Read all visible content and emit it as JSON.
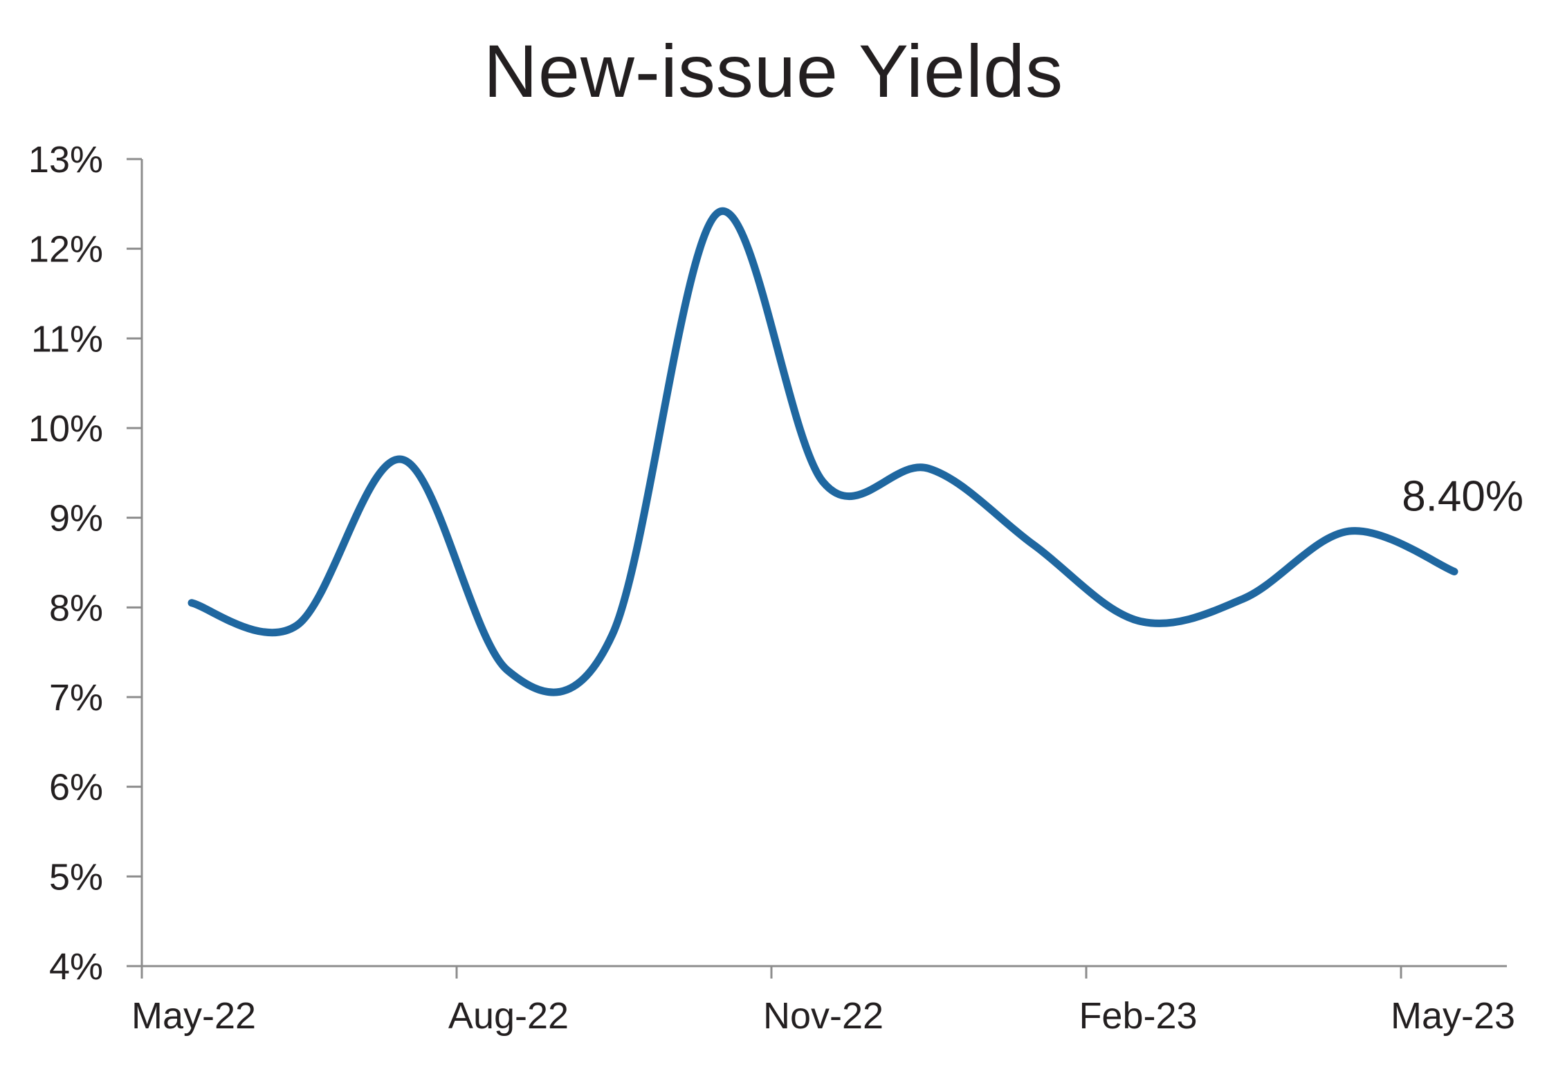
{
  "chart_data": {
    "type": "line",
    "title": "New-issue Yields",
    "xlabel": "",
    "ylabel": "",
    "x_tick_labels": [
      "May-22",
      "Aug-22",
      "Nov-22",
      "Feb-23",
      "May-23"
    ],
    "ylim": [
      4,
      13
    ],
    "y_ticks": [
      4,
      5,
      6,
      7,
      8,
      9,
      10,
      11,
      12,
      13
    ],
    "y_tick_suffix": "%",
    "grid": false,
    "legend": "none",
    "line_color": "#1f67a0",
    "series": [
      {
        "x": [
          "2022-05",
          "2022-06",
          "2022-07",
          "2022-08",
          "2022-09",
          "2022-10",
          "2022-11",
          "2022-12",
          "2023-01",
          "2023-02",
          "2023-03",
          "2023-04",
          "2023-05"
        ],
        "values": [
          8.05,
          7.8,
          9.65,
          7.3,
          7.7,
          12.4,
          9.4,
          9.55,
          8.7,
          7.85,
          8.1,
          8.85,
          8.4
        ]
      }
    ],
    "annotations": [
      {
        "text": "8.40%",
        "x": "2023-05",
        "y": 8.4
      }
    ]
  }
}
